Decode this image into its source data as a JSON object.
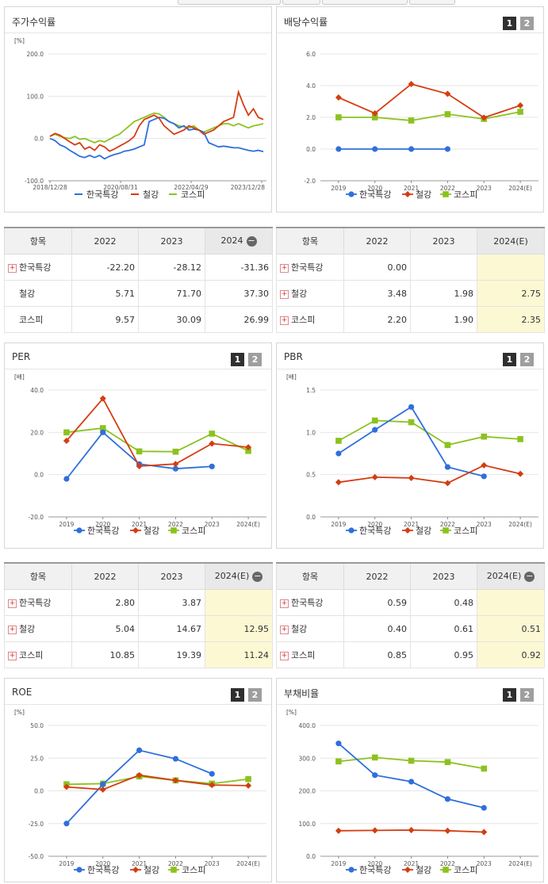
{
  "colors": {
    "hanguk": "#2f6fdb",
    "steel": "#d43d12",
    "kospi": "#8cc21f"
  },
  "legend": [
    "한국특강",
    "철강",
    "코스피"
  ],
  "panels": [
    {
      "id": "p1",
      "title": "주가수익률",
      "badges": false,
      "unit": "[%]"
    },
    {
      "id": "p2",
      "title": "배당수익률",
      "badges": true,
      "unit": ""
    },
    {
      "id": "p3",
      "title": "PER",
      "badges": true,
      "unit": "[배]"
    },
    {
      "id": "p4",
      "title": "PBR",
      "badges": true,
      "unit": "[배]"
    },
    {
      "id": "p5",
      "title": "ROE",
      "badges": true,
      "unit": "[%]"
    },
    {
      "id": "p6",
      "title": "부채비율",
      "badges": true,
      "unit": "[%]"
    }
  ],
  "badge_labels": [
    "1",
    "2"
  ],
  "tables": [
    {
      "id": "t1",
      "header": [
        "항목",
        "2022",
        "2023",
        "2024"
      ],
      "header_minus": true,
      "rows": [
        {
          "name": "한국특강",
          "plus": true,
          "vals": [
            "-22.20",
            "-28.12",
            "-31.36"
          ]
        },
        {
          "name": "철강",
          "plus": false,
          "vals": [
            "5.71",
            "71.70",
            "37.30"
          ]
        },
        {
          "name": "코스피",
          "plus": false,
          "vals": [
            "9.57",
            "30.09",
            "26.99"
          ]
        }
      ]
    },
    {
      "id": "t2",
      "header": [
        "항목",
        "2022",
        "2023",
        "2024(E)"
      ],
      "header_minus": false,
      "rows": [
        {
          "name": "한국특강",
          "plus": true,
          "vals": [
            "0.00",
            "",
            ""
          ]
        },
        {
          "name": "철강",
          "plus": true,
          "vals": [
            "3.48",
            "1.98",
            "2.75"
          ]
        },
        {
          "name": "코스피",
          "plus": true,
          "vals": [
            "2.20",
            "1.90",
            "2.35"
          ]
        }
      ]
    },
    {
      "id": "t3",
      "header": [
        "항목",
        "2022",
        "2023",
        "2024(E)"
      ],
      "header_minus": true,
      "rows": [
        {
          "name": "한국특강",
          "plus": true,
          "vals": [
            "2.80",
            "3.87",
            ""
          ]
        },
        {
          "name": "철강",
          "plus": true,
          "vals": [
            "5.04",
            "14.67",
            "12.95"
          ]
        },
        {
          "name": "코스피",
          "plus": true,
          "vals": [
            "10.85",
            "19.39",
            "11.24"
          ]
        }
      ]
    },
    {
      "id": "t4",
      "header": [
        "항목",
        "2022",
        "2023",
        "2024(E)"
      ],
      "header_minus": true,
      "rows": [
        {
          "name": "한국특강",
          "plus": true,
          "vals": [
            "0.59",
            "0.48",
            ""
          ]
        },
        {
          "name": "철강",
          "plus": true,
          "vals": [
            "0.40",
            "0.61",
            "0.51"
          ]
        },
        {
          "name": "코스피",
          "plus": true,
          "vals": [
            "0.85",
            "0.95",
            "0.92"
          ]
        }
      ]
    }
  ],
  "chart_data": [
    {
      "type": "line",
      "title": "주가수익률",
      "ylabel": "[%]",
      "ylim": [
        -100,
        200
      ],
      "yticks": [
        "200.0",
        "100.0",
        "0.0",
        "-100.0"
      ],
      "xticks": [
        "2018/12/28",
        "2020/08/31",
        "2022/04/29",
        "2023/12/28"
      ],
      "series": [
        {
          "name": "한국특강",
          "values": [
            0,
            -5,
            -15,
            -20,
            -28,
            -35,
            -42,
            -45,
            -40,
            -45,
            -40,
            -48,
            -42,
            -38,
            -35,
            -30,
            -28,
            -25,
            -20,
            -15,
            40,
            45,
            50,
            48,
            40,
            35,
            25,
            30,
            20,
            22,
            20,
            15,
            -10,
            -15,
            -20,
            -18,
            -20,
            -22,
            -22,
            -25,
            -28,
            -30,
            -28,
            -31
          ]
        },
        {
          "name": "철강",
          "values": [
            5,
            12,
            8,
            0,
            -8,
            -15,
            -10,
            -25,
            -20,
            -28,
            -15,
            -20,
            -30,
            -25,
            -18,
            -12,
            -5,
            5,
            30,
            45,
            50,
            55,
            48,
            30,
            20,
            10,
            15,
            20,
            30,
            25,
            20,
            10,
            15,
            20,
            30,
            40,
            45,
            50,
            110,
            80,
            55,
            70,
            50,
            45
          ]
        },
        {
          "name": "코스피",
          "values": [
            5,
            10,
            5,
            2,
            0,
            5,
            -2,
            0,
            -5,
            -10,
            -5,
            -8,
            -2,
            5,
            10,
            20,
            30,
            40,
            45,
            50,
            55,
            60,
            58,
            50,
            40,
            35,
            30,
            28,
            25,
            30,
            20,
            15,
            20,
            25,
            30,
            35,
            35,
            30,
            35,
            30,
            25,
            30,
            32,
            35
          ]
        }
      ]
    },
    {
      "type": "line",
      "title": "배당수익률",
      "ylim": [
        -2,
        6
      ],
      "yticks": [
        "6.0",
        "4.0",
        "2.0",
        "0.0",
        "-2.0"
      ],
      "categories": [
        "2019",
        "2020",
        "2021",
        "2022",
        "2023",
        "2024(E)"
      ],
      "series": [
        {
          "name": "한국특강",
          "values": [
            0,
            0,
            0,
            0,
            null,
            null
          ]
        },
        {
          "name": "철강",
          "values": [
            3.25,
            2.25,
            4.1,
            3.48,
            1.98,
            2.75
          ]
        },
        {
          "name": "코스피",
          "values": [
            2.0,
            2.0,
            1.8,
            2.2,
            1.9,
            2.35
          ]
        }
      ]
    },
    {
      "type": "line",
      "title": "PER",
      "ylabel": "[배]",
      "ylim": [
        -20,
        40
      ],
      "yticks": [
        "40.0",
        "20.0",
        "0.0",
        "-20.0"
      ],
      "categories": [
        "2019",
        "2020",
        "2021",
        "2022",
        "2023",
        "2024(E)"
      ],
      "series": [
        {
          "name": "한국특강",
          "values": [
            -2.0,
            20.0,
            5.0,
            2.8,
            3.87,
            null
          ]
        },
        {
          "name": "철강",
          "values": [
            16.0,
            36.0,
            4.0,
            5.04,
            14.67,
            12.95
          ]
        },
        {
          "name": "코스피",
          "values": [
            20.0,
            22.0,
            11.0,
            10.85,
            19.39,
            11.24
          ]
        }
      ]
    },
    {
      "type": "line",
      "title": "PBR",
      "ylabel": "[배]",
      "ylim": [
        0,
        1.5
      ],
      "yticks": [
        "1.5",
        "1.0",
        "0.5",
        "0.0"
      ],
      "categories": [
        "2019",
        "2020",
        "2021",
        "2022",
        "2023",
        "2024(E)"
      ],
      "series": [
        {
          "name": "한국특강",
          "values": [
            0.75,
            1.03,
            1.3,
            0.59,
            0.48,
            null
          ]
        },
        {
          "name": "철강",
          "values": [
            0.41,
            0.47,
            0.46,
            0.4,
            0.61,
            0.51
          ]
        },
        {
          "name": "코스피",
          "values": [
            0.9,
            1.14,
            1.12,
            0.85,
            0.95,
            0.92
          ]
        }
      ]
    },
    {
      "type": "line",
      "title": "ROE",
      "ylabel": "[%]",
      "ylim": [
        -50,
        50
      ],
      "yticks": [
        "50.0",
        "25.0",
        "0.0",
        "-25.0",
        "-50.0"
      ],
      "categories": [
        "2019",
        "2020",
        "2021",
        "2022",
        "2023",
        "2024(E)"
      ],
      "series": [
        {
          "name": "한국특강",
          "values": [
            -25.0,
            5.0,
            31.0,
            24.5,
            13.0,
            null
          ]
        },
        {
          "name": "철강",
          "values": [
            3.0,
            1.0,
            12.0,
            8.0,
            4.5,
            4.0
          ]
        },
        {
          "name": "코스피",
          "values": [
            5.0,
            5.5,
            11.0,
            8.0,
            5.5,
            9.0
          ]
        }
      ]
    },
    {
      "type": "line",
      "title": "부채비율",
      "ylabel": "[%]",
      "ylim": [
        0,
        400
      ],
      "yticks": [
        "400.0",
        "300.0",
        "200.0",
        "100.0",
        "0.0"
      ],
      "categories": [
        "2019",
        "2020",
        "2021",
        "2022",
        "2023",
        "2024(E)"
      ],
      "series": [
        {
          "name": "한국특강",
          "values": [
            345,
            248,
            228,
            175,
            148,
            null
          ]
        },
        {
          "name": "철강",
          "values": [
            78,
            79,
            80,
            78,
            74,
            null
          ]
        },
        {
          "name": "코스피",
          "values": [
            290,
            302,
            292,
            288,
            268,
            null
          ]
        }
      ]
    }
  ]
}
